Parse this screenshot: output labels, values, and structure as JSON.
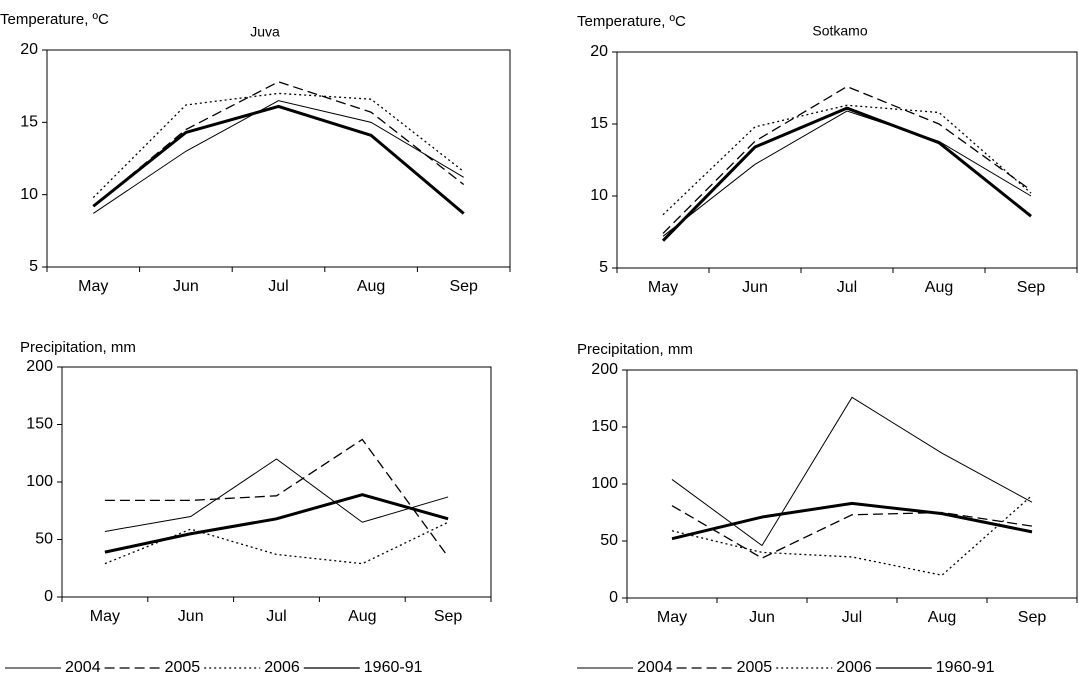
{
  "chart_data": [
    {
      "type": "line",
      "title": "Juva",
      "y_label": "Temperature, ºC",
      "categories": [
        "May",
        "Jun",
        "Jul",
        "Aug",
        "Sep"
      ],
      "ylim": [
        5,
        20
      ],
      "yticks": [
        5,
        10,
        15,
        20
      ],
      "series": [
        {
          "name": "2004",
          "color": "#000000",
          "style": "solid",
          "width": 1,
          "values": [
            8.7,
            13.0,
            16.5,
            15.0,
            11.2
          ]
        },
        {
          "name": "2005",
          "color": "#000000",
          "style": "dash",
          "width": 1.3,
          "values": [
            9.2,
            14.5,
            17.8,
            15.7,
            10.7
          ]
        },
        {
          "name": "2006",
          "color": "#000000",
          "style": "dot",
          "width": 1.3,
          "values": [
            9.8,
            16.2,
            17.0,
            16.6,
            11.6
          ]
        },
        {
          "name": "1960-91",
          "color": "#000000",
          "style": "solid",
          "width": 3,
          "values": [
            9.2,
            14.3,
            16.1,
            14.1,
            8.7
          ]
        }
      ]
    },
    {
      "type": "line",
      "title": "Sotkamo",
      "y_label": "Temperature, ºC",
      "categories": [
        "May",
        "Jun",
        "Jul",
        "Aug",
        "Sep"
      ],
      "ylim": [
        5,
        20
      ],
      "yticks": [
        5,
        10,
        15,
        20
      ],
      "series": [
        {
          "name": "2004",
          "color": "#000000",
          "style": "solid",
          "width": 1,
          "values": [
            7.2,
            12.2,
            15.9,
            13.8,
            10.0
          ]
        },
        {
          "name": "2005",
          "color": "#000000",
          "style": "dash",
          "width": 1.3,
          "values": [
            7.4,
            13.8,
            17.6,
            15.0,
            10.4
          ]
        },
        {
          "name": "2006",
          "color": "#000000",
          "style": "dot",
          "width": 1.3,
          "values": [
            8.7,
            14.8,
            16.3,
            15.8,
            10.2
          ]
        },
        {
          "name": "1960-91",
          "color": "#000000",
          "style": "solid",
          "width": 3,
          "values": [
            6.9,
            13.4,
            16.1,
            13.7,
            8.6
          ]
        }
      ]
    },
    {
      "type": "line",
      "y_label": "Precipitation, mm",
      "legend": "bottom",
      "categories": [
        "May",
        "Jun",
        "Jul",
        "Aug",
        "Sep"
      ],
      "ylim": [
        0,
        200
      ],
      "yticks": [
        0,
        50,
        100,
        150,
        200
      ],
      "series": [
        {
          "name": "2004",
          "color": "#000000",
          "style": "solid",
          "width": 1,
          "values": [
            57,
            70,
            120,
            65,
            87
          ]
        },
        {
          "name": "2005",
          "color": "#000000",
          "style": "dash",
          "width": 1.3,
          "values": [
            84,
            84,
            88,
            137,
            35
          ]
        },
        {
          "name": "2006",
          "color": "#000000",
          "style": "dot",
          "width": 1.3,
          "values": [
            29,
            59,
            37,
            29,
            65
          ]
        },
        {
          "name": "1960-91",
          "color": "#000000",
          "style": "solid",
          "width": 3,
          "values": [
            39,
            55,
            68,
            89,
            68
          ]
        }
      ]
    },
    {
      "type": "line",
      "y_label": "Precipitation, mm",
      "legend": "bottom",
      "categories": [
        "May",
        "Jun",
        "Jul",
        "Aug",
        "Sep"
      ],
      "ylim": [
        0,
        200
      ],
      "yticks": [
        0,
        50,
        100,
        150,
        200
      ],
      "series": [
        {
          "name": "2004",
          "color": "#000000",
          "style": "solid",
          "width": 1,
          "values": [
            104,
            46,
            176,
            127,
            84
          ]
        },
        {
          "name": "2005",
          "color": "#000000",
          "style": "dash",
          "width": 1.3,
          "values": [
            81,
            35,
            73,
            75,
            63
          ]
        },
        {
          "name": "2006",
          "color": "#000000",
          "style": "dot",
          "width": 1.3,
          "values": [
            59,
            40,
            36,
            20,
            90
          ]
        },
        {
          "name": "1960-91",
          "color": "#000000",
          "style": "solid",
          "width": 3,
          "values": [
            52,
            71,
            83,
            74,
            58
          ]
        }
      ]
    }
  ]
}
